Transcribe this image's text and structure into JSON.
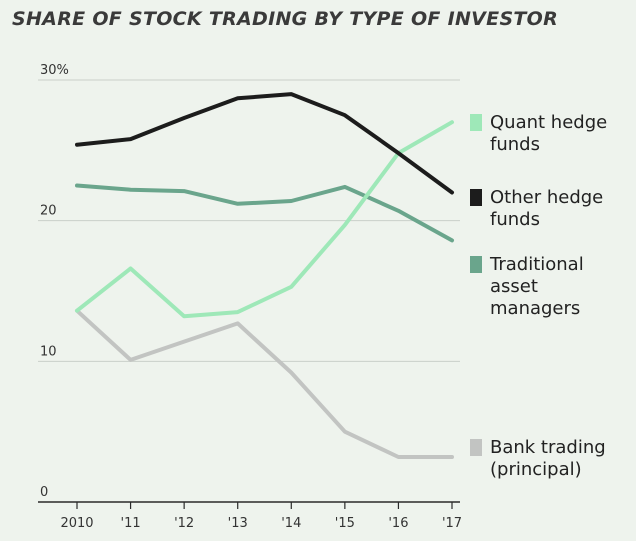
{
  "title": "SHARE OF STOCK TRADING BY TYPE OF INVESTOR",
  "chart_data": {
    "type": "line",
    "title": "SHARE OF STOCK TRADING BY TYPE OF INVESTOR",
    "xlabel": "",
    "ylabel": "",
    "categories": [
      "2010",
      "'11",
      "'12",
      "'13",
      "'14",
      "'15",
      "'16",
      "'17"
    ],
    "ylim": [
      0,
      30
    ],
    "yticks": [
      {
        "value": 0,
        "label": "0"
      },
      {
        "value": 10,
        "label": "10"
      },
      {
        "value": 20,
        "label": "20"
      },
      {
        "value": 30,
        "label": "30%"
      }
    ],
    "grid": true,
    "legend_position": "right",
    "series": [
      {
        "name": "Quant hedge funds",
        "label_lines": [
          "Quant hedge",
          "funds"
        ],
        "color": "#9ee8b8",
        "values": [
          13.6,
          16.6,
          13.2,
          13.5,
          15.3,
          19.7,
          24.8,
          27.0
        ]
      },
      {
        "name": "Other hedge funds",
        "label_lines": [
          "Other hedge",
          "funds"
        ],
        "color": "#1c1c1c",
        "values": [
          25.4,
          25.8,
          27.3,
          28.7,
          29.0,
          27.5,
          24.8,
          22.0
        ]
      },
      {
        "name": "Traditional asset managers",
        "label_lines": [
          "Traditional",
          "asset",
          "managers"
        ],
        "color": "#6aa58c",
        "values": [
          22.5,
          22.2,
          22.1,
          21.2,
          21.4,
          22.4,
          20.7,
          18.6
        ]
      },
      {
        "name": "Bank trading (principal)",
        "label_lines": [
          "Bank trading",
          "(principal)"
        ],
        "color": "#c2c4c2",
        "values": [
          13.6,
          10.1,
          11.4,
          12.7,
          9.2,
          5.0,
          3.2,
          3.2
        ]
      }
    ]
  }
}
